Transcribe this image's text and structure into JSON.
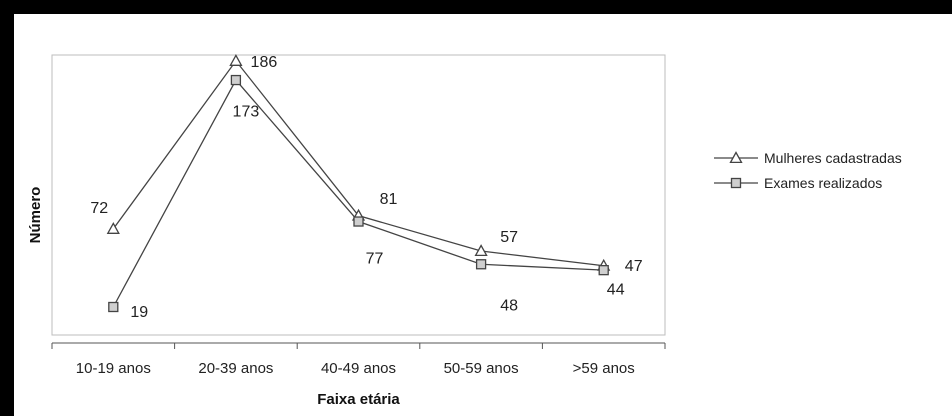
{
  "chart_data": {
    "type": "line",
    "categories": [
      "10-19 anos",
      "20-39 anos",
      "40-49 anos",
      "50-59 anos",
      ">59 anos"
    ],
    "series": [
      {
        "name": "Mulheres cadastradas",
        "marker": "triangle",
        "values": [
          72,
          186,
          81,
          57,
          47
        ]
      },
      {
        "name": "Exames realizados",
        "marker": "square",
        "values": [
          19,
          173,
          77,
          48,
          44
        ]
      }
    ],
    "data_labels": {
      "Mulheres cadastradas": [
        "72",
        "186",
        "81",
        "57",
        "47"
      ],
      "Exames realizados": [
        "19",
        "173",
        "77",
        "48",
        "44"
      ]
    },
    "xlabel": "Faixa etária",
    "ylabel": "Número",
    "ylim": [
      0,
      190
    ],
    "grid": false,
    "legend_position": "right",
    "colors": {
      "line": "#444444",
      "plot_border": "#bdbdbd",
      "frame": "#000000"
    }
  }
}
